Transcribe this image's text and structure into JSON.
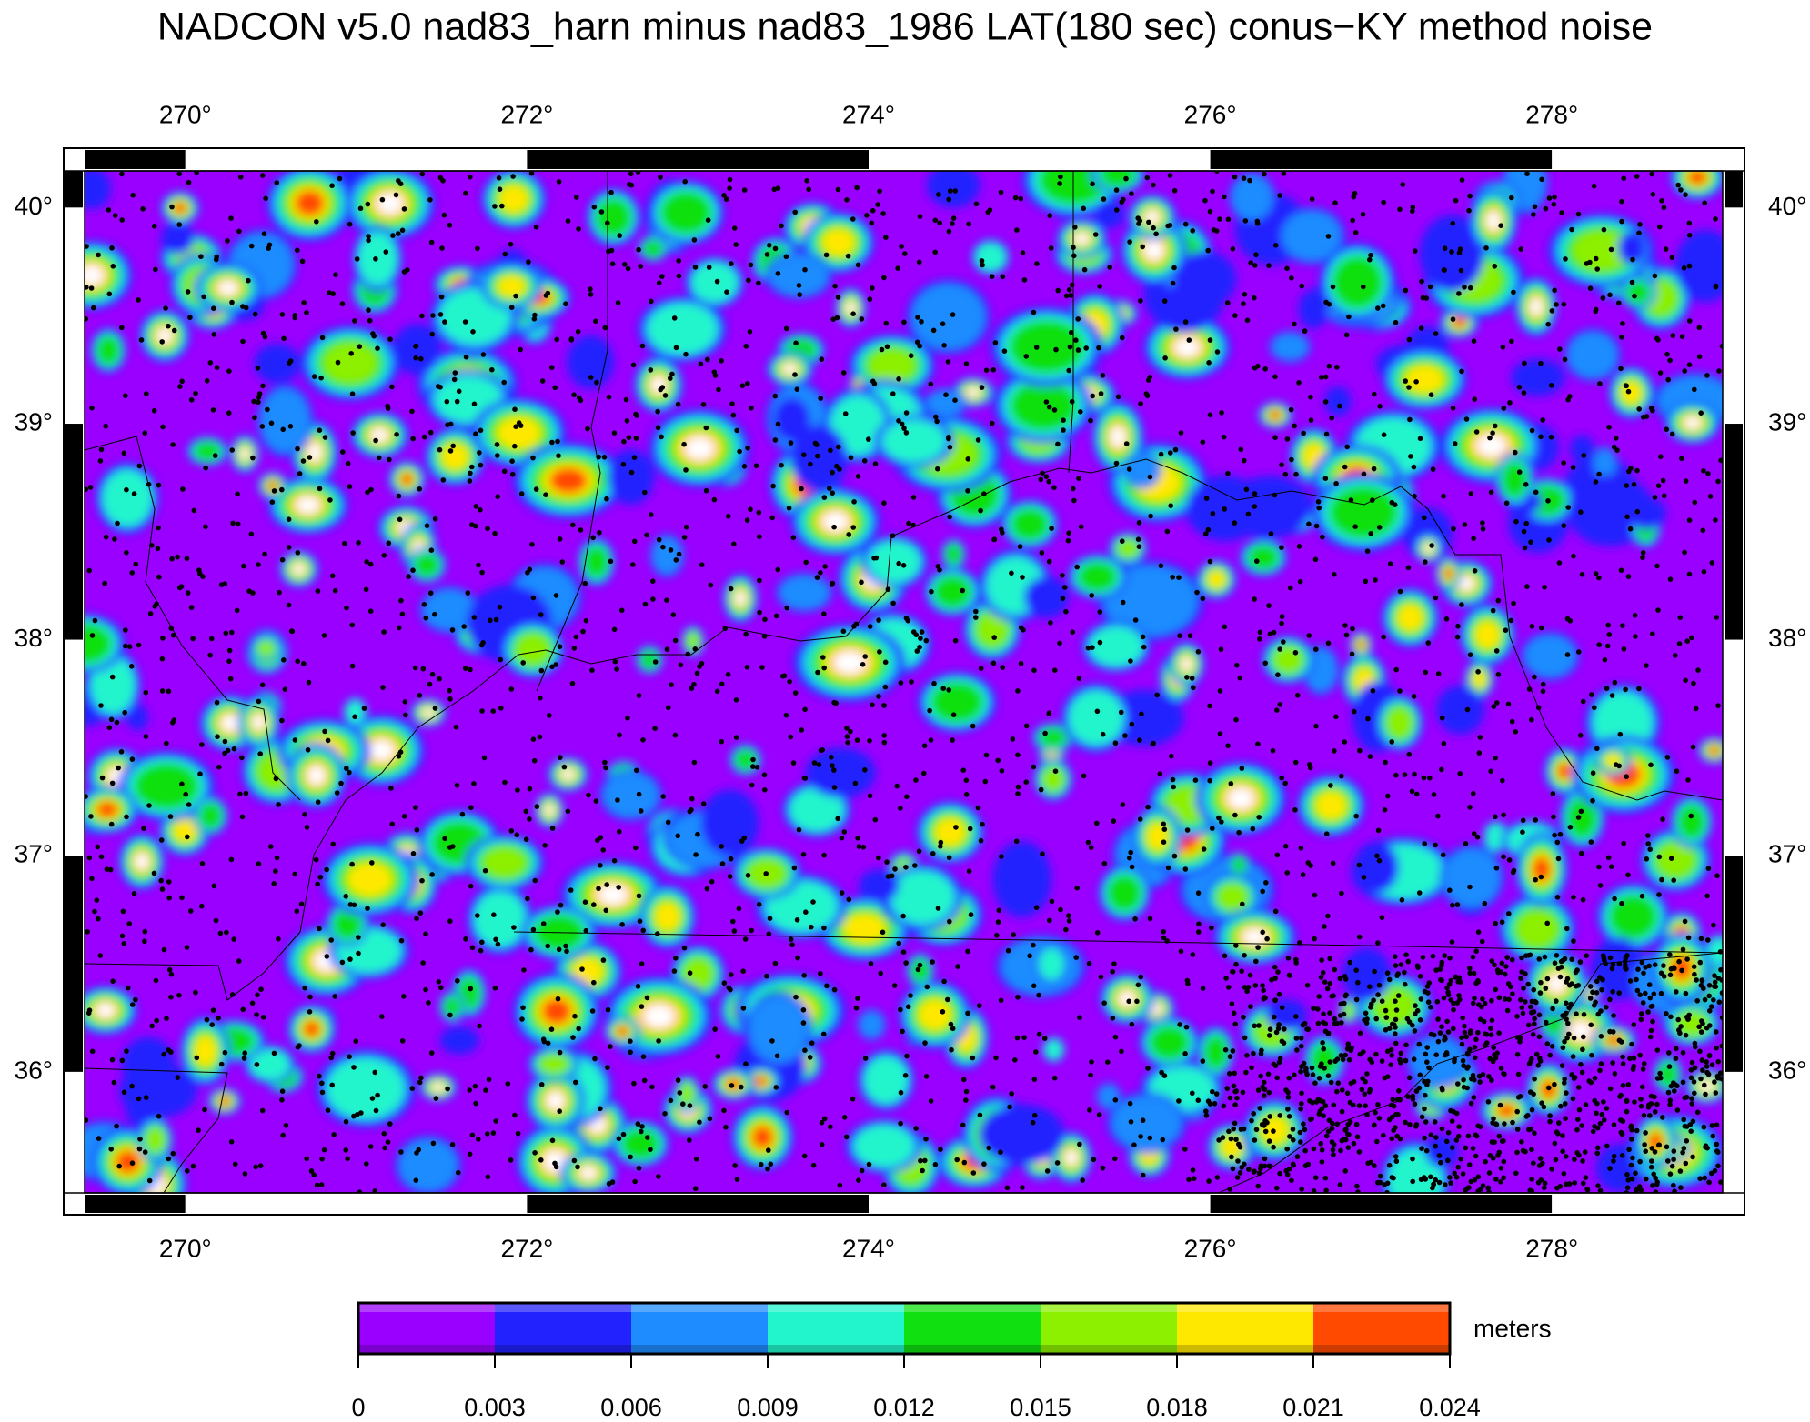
{
  "chart_data": {
    "type": "map",
    "title": "NADCON v5.0 nad83_harn minus nad83_1986 LAT(180 sec) conus−KY method noise",
    "xlim": [
      269.41,
      279.0
    ],
    "ylim": [
      35.44,
      40.17
    ],
    "xticks": [
      {
        "value": 270,
        "label": "270°"
      },
      {
        "value": 272,
        "label": "272°"
      },
      {
        "value": 274,
        "label": "274°"
      },
      {
        "value": 276,
        "label": "276°"
      },
      {
        "value": 278,
        "label": "278°"
      }
    ],
    "yticks": [
      {
        "value": 36,
        "label": "36°"
      },
      {
        "value": 37,
        "label": "37°"
      },
      {
        "value": 38,
        "label": "38°"
      },
      {
        "value": 39,
        "label": "39°"
      },
      {
        "value": 40,
        "label": "40°"
      }
    ],
    "colorbar": {
      "label": "meters",
      "clim": [
        0,
        0.024
      ],
      "ticks": [
        0,
        0.003,
        0.006,
        0.009,
        0.012,
        0.015,
        0.018,
        0.021,
        0.024
      ],
      "colors": [
        "#9a00ff",
        "#2222ff",
        "#1e8cff",
        "#22f5cc",
        "#10e010",
        "#8cf000",
        "#ffe800",
        "#ff4a00"
      ]
    }
  }
}
